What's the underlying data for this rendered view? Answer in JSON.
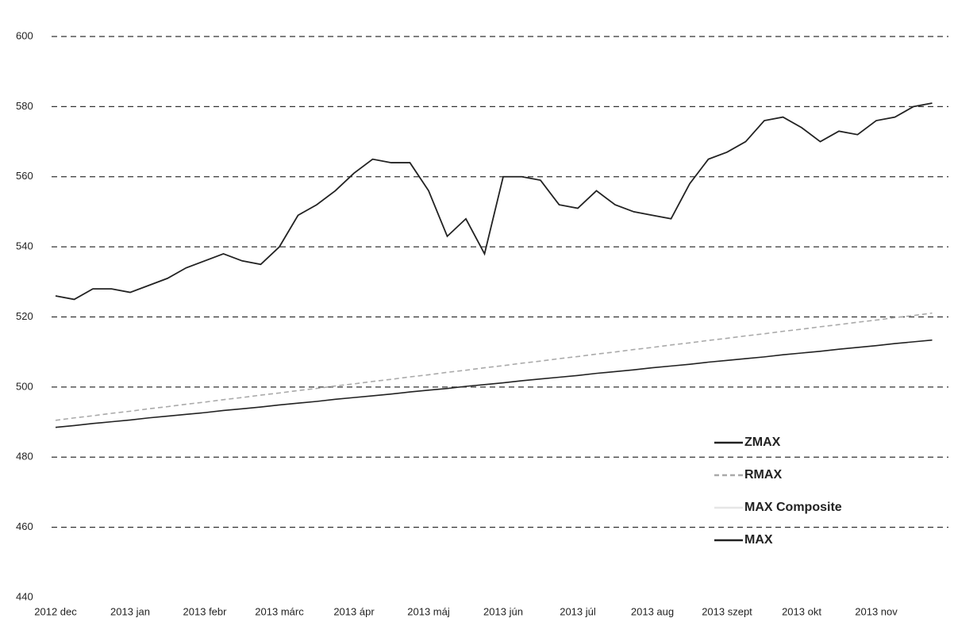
{
  "chart_data": {
    "type": "line",
    "categories": [
      "2012 dec",
      null,
      null,
      null,
      "2013 jan",
      null,
      null,
      null,
      "2013 febr",
      null,
      null,
      null,
      "2013 márc",
      null,
      null,
      null,
      "2013 ápr",
      null,
      null,
      null,
      "2013 máj",
      null,
      null,
      null,
      "2013 jún",
      null,
      null,
      null,
      "2013 júl",
      null,
      null,
      null,
      "2013 aug",
      null,
      null,
      null,
      "2013 szept",
      null,
      null,
      null,
      "2013 okt",
      null,
      null,
      null,
      "2013 nov",
      null,
      null,
      null
    ],
    "series": [
      {
        "name": "ZMAX",
        "color": "#222222",
        "dash": "solid",
        "values": [
          526,
          525,
          528,
          528,
          527,
          529,
          531,
          534,
          536,
          538,
          536,
          535,
          540,
          549,
          552,
          556,
          561,
          565,
          564,
          564,
          556,
          543,
          548,
          538,
          560,
          560,
          559,
          552,
          551,
          556,
          552,
          550,
          549,
          548,
          558,
          565,
          567,
          570,
          576,
          577,
          574,
          570,
          573,
          572,
          576,
          577,
          580,
          581
        ]
      },
      {
        "name": "RMAX",
        "color": "#aaaaaa",
        "dash": "dashed",
        "values": [
          490.5,
          491.2,
          491.8,
          492.5,
          493.1,
          493.8,
          494.4,
          495.1,
          495.7,
          496.4,
          497.0,
          497.7,
          498.3,
          499.0,
          499.6,
          500.3,
          500.9,
          501.6,
          502.2,
          502.9,
          503.5,
          504.2,
          504.8,
          505.5,
          506.1,
          506.8,
          507.4,
          508.1,
          508.7,
          509.4,
          510.0,
          510.7,
          511.3,
          512.0,
          512.6,
          513.3,
          513.9,
          514.6,
          515.2,
          515.9,
          516.5,
          517.2,
          517.8,
          518.5,
          519.1,
          519.8,
          520.4,
          521.1
        ]
      },
      {
        "name": "MAX Composite",
        "color": "#e6e6e6",
        "dash": "solid",
        "values": [
          null,
          null,
          null,
          null,
          null,
          null,
          null,
          null,
          null,
          null,
          null,
          null,
          null,
          null,
          null,
          null,
          null,
          null,
          null,
          null,
          null,
          null,
          null,
          null,
          null,
          null,
          null,
          null,
          null,
          null,
          null,
          null,
          null,
          null,
          null,
          null,
          null,
          null,
          null,
          null,
          null,
          null,
          null,
          null,
          null,
          null,
          null,
          null
        ]
      },
      {
        "name": "MAX",
        "color": "#222222",
        "dash": "solid",
        "values": [
          488.5,
          489.0,
          489.6,
          490.1,
          490.6,
          491.2,
          491.7,
          492.2,
          492.7,
          493.3,
          493.8,
          494.3,
          494.9,
          495.4,
          495.9,
          496.5,
          497.0,
          497.5,
          498.0,
          498.6,
          499.1,
          499.6,
          500.2,
          500.7,
          501.2,
          501.8,
          502.3,
          502.8,
          503.3,
          503.9,
          504.4,
          504.9,
          505.5,
          506.0,
          506.5,
          507.1,
          507.6,
          508.1,
          508.6,
          509.2,
          509.7,
          510.2,
          510.8,
          511.3,
          511.8,
          512.4,
          512.9,
          513.4
        ]
      }
    ],
    "ylim": [
      440,
      600
    ],
    "yticks": [
      440,
      460,
      480,
      500,
      520,
      540,
      560,
      580,
      600
    ],
    "grid": true,
    "legend": "lower right"
  }
}
